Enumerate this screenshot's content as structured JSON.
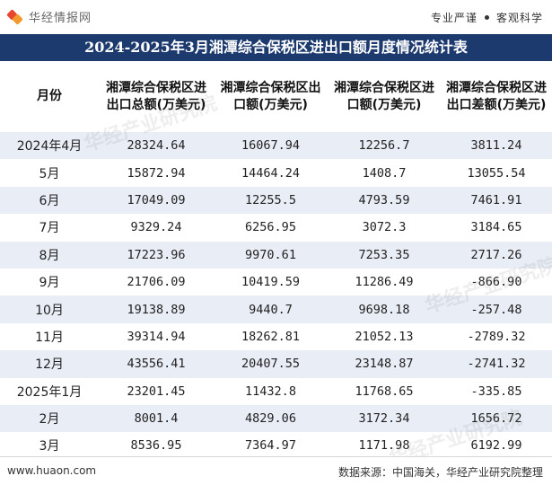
{
  "header": {
    "logo_text": "华经情报网",
    "slogan_1": "专业严谨",
    "slogan_2": "客观科学"
  },
  "title": "2024-2025年3月湘潭综合保税区进出口额月度情况统计表",
  "table": {
    "columns": [
      "月份",
      "湘潭综合保税区进出口总额(万美元)",
      "湘潭综合保税区出口额(万美元)",
      "湘潭综合保税区进口额(万美元)",
      "湘潭综合保税区进出口差额(万美元)"
    ],
    "rows": [
      [
        "2024年4月",
        "28324.64",
        "16067.94",
        "12256.7",
        "3811.24"
      ],
      [
        "5月",
        "15872.94",
        "14464.24",
        "1408.7",
        "13055.54"
      ],
      [
        "6月",
        "17049.09",
        "12255.5",
        "4793.59",
        "7461.91"
      ],
      [
        "7月",
        "9329.24",
        "6256.95",
        "3072.3",
        "3184.65"
      ],
      [
        "8月",
        "17223.96",
        "9970.61",
        "7253.35",
        "2717.26"
      ],
      [
        "9月",
        "21706.09",
        "10419.59",
        "11286.49",
        "-866.90"
      ],
      [
        "10月",
        "19138.89",
        "9440.7",
        "9698.18",
        "-257.48"
      ],
      [
        "11月",
        "39314.94",
        "18262.81",
        "21052.13",
        "-2789.32"
      ],
      [
        "12月",
        "43556.41",
        "20407.55",
        "23148.87",
        "-2741.32"
      ],
      [
        "2025年1月",
        "23201.45",
        "11432.8",
        "11768.65",
        "-335.85"
      ],
      [
        "2月",
        "8001.4",
        "4829.06",
        "3172.34",
        "1656.72"
      ],
      [
        "3月",
        "8536.95",
        "7364.97",
        "1171.98",
        "6192.99"
      ]
    ]
  },
  "watermark_text": "华经产业研究院",
  "footer": {
    "website": "www.huaon.com",
    "source": "数据来源：中国海关，华经产业研究院整理"
  }
}
